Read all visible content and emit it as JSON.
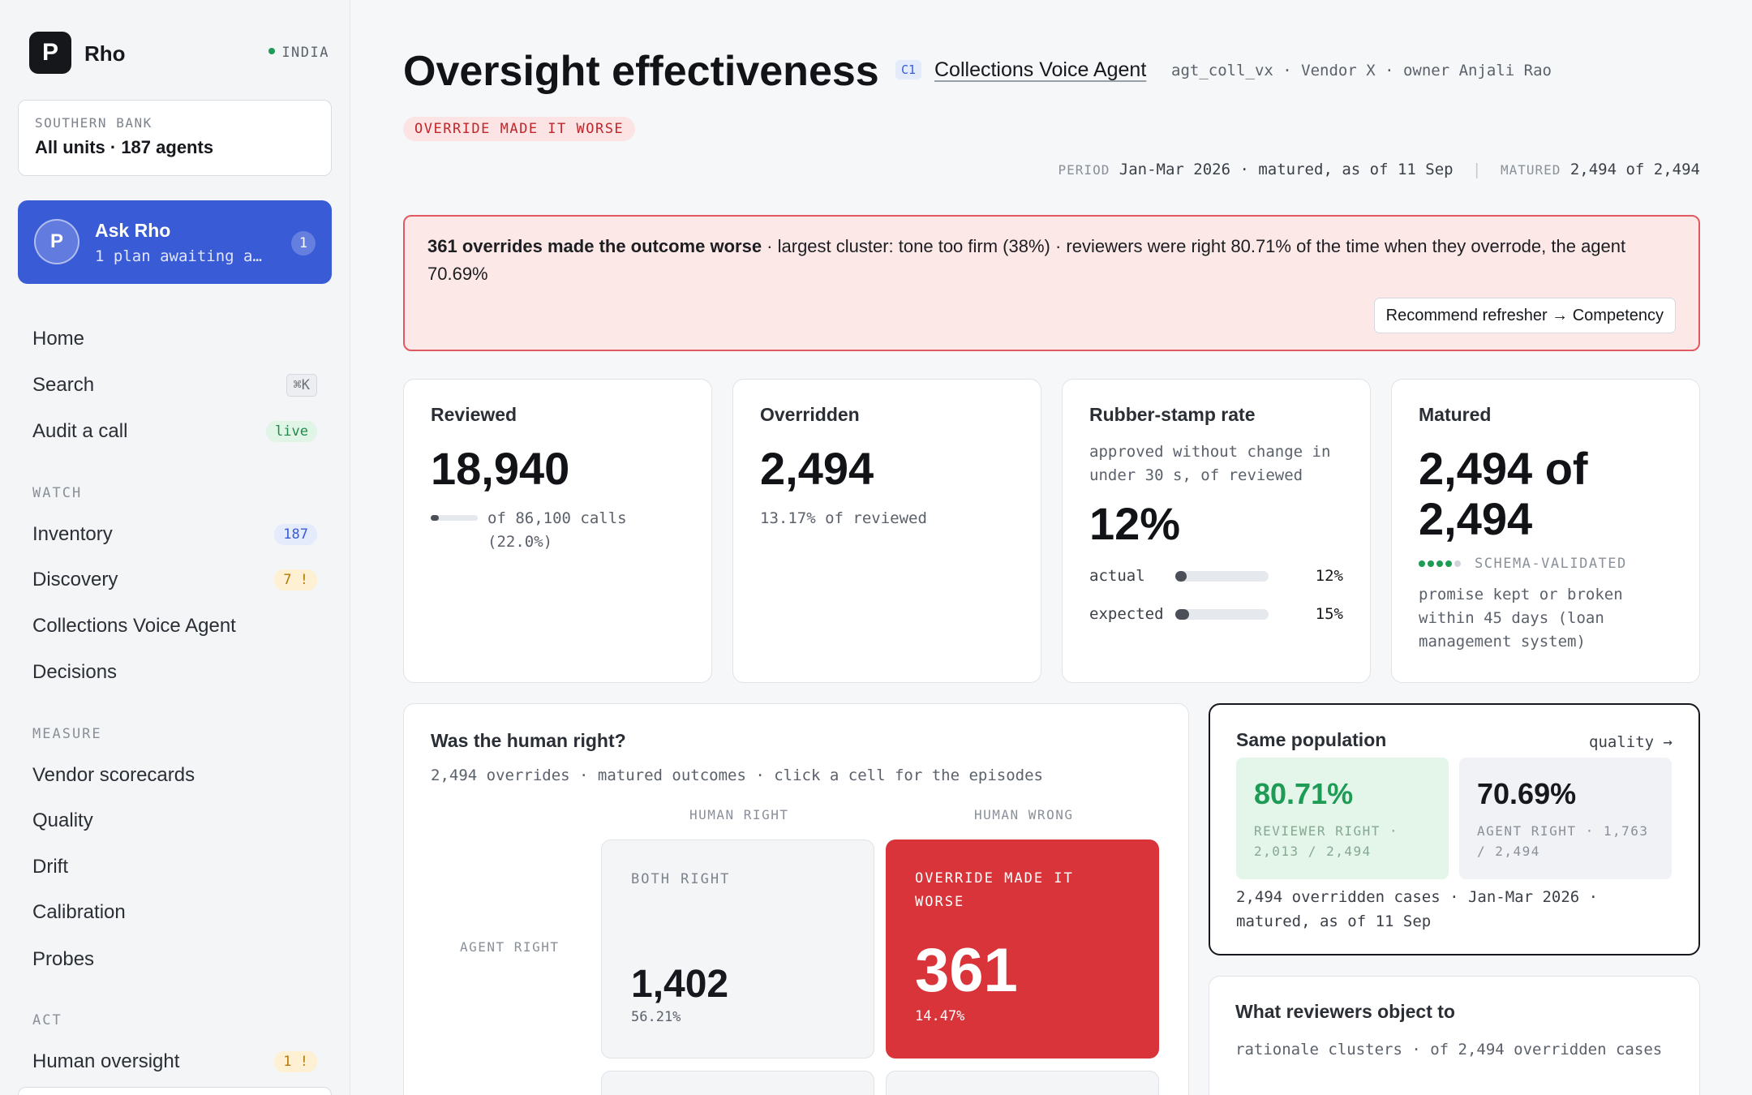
{
  "sidebar": {
    "brand": {
      "logo": "P",
      "name": "Rho",
      "region": "INDIA"
    },
    "unit": {
      "label": "SOUTHERN BANK",
      "value": "All units · 187 agents"
    },
    "ask": {
      "avatar": "P",
      "title": "Ask Rho",
      "subtitle": "1 plan awaiting a…",
      "badge": "1"
    },
    "top_items": [
      {
        "label": "Home",
        "badge": ""
      },
      {
        "label": "Search",
        "badge": "⌘K"
      },
      {
        "label": "Audit a call",
        "badge": "live"
      }
    ],
    "sections": [
      {
        "title": "WATCH",
        "items": [
          {
            "label": "Inventory",
            "badge": "187"
          },
          {
            "label": "Discovery",
            "badge": "7 !"
          },
          {
            "label": "Collections Voice Agent",
            "badge": ""
          },
          {
            "label": "Decisions",
            "badge": ""
          }
        ]
      },
      {
        "title": "MEASURE",
        "items": [
          {
            "label": "Vendor scorecards"
          },
          {
            "label": "Quality"
          },
          {
            "label": "Drift"
          },
          {
            "label": "Calibration"
          },
          {
            "label": "Probes"
          }
        ]
      },
      {
        "title": "ACT",
        "items": [
          {
            "label": "Human oversight",
            "badge": "1 !"
          }
        ]
      }
    ]
  },
  "header": {
    "title": "Oversight effectiveness",
    "tier": "C1",
    "agent_name": "Collections Voice Agent",
    "agent_meta": "agt_coll_vx · Vendor X · owner Anjali Rao",
    "status": "OVERRIDE MADE IT WORSE",
    "period_label": "PERIOD",
    "period_value": "Jan-Mar 2026 · matured, as of 11 Sep",
    "separator": "|",
    "matured_label": "MATURED",
    "matured_value": "2,494 of 2,494"
  },
  "alert": {
    "headline": "361 overrides made the outcome worse",
    "detail": " · largest cluster: tone too firm (38%) · reviewers were right 80.71% of the time when they overrode, the agent 70.69%",
    "button": "Recommend refresher → Competency"
  },
  "kpis": {
    "reviewed": {
      "label": "Reviewed",
      "value": "18,940",
      "note": "of 86,100 calls (22.0%)",
      "fraction": 0.22
    },
    "overridden": {
      "label": "Overridden",
      "value": "2,494",
      "note": "13.17% of reviewed"
    },
    "rubber_stamp": {
      "label": "Rubber-stamp rate",
      "note": "approved without change in under 30 s, of reviewed",
      "value": "12%",
      "rows": [
        {
          "name": "actual",
          "pct": "12%",
          "fraction": 0.12
        },
        {
          "name": "expected",
          "pct": "15%",
          "fraction": 0.15
        }
      ]
    },
    "matured": {
      "label": "Matured",
      "value": "2,494 of 2,494",
      "badge": "SCHEMA-VALIDATED",
      "dots_filled": 4,
      "dots_total": 5,
      "note": "promise kept or broken within 45 days (loan management system)"
    }
  },
  "matrix": {
    "title": "Was the human right?",
    "subtitle": "2,494 overrides · matured outcomes · click a cell for the episodes",
    "col_headers": [
      "HUMAN RIGHT",
      "HUMAN WRONG"
    ],
    "row_headers": [
      "AGENT RIGHT"
    ],
    "cells": [
      {
        "title": "BOTH RIGHT",
        "value": "1,402",
        "pct": "56.21%"
      },
      {
        "title": "OVERRIDE MADE IT WORSE",
        "value": "361",
        "pct": "14.47%"
      }
    ]
  },
  "population": {
    "title": "Same population",
    "link": "quality →",
    "reviewer": {
      "value": "80.71%",
      "label": "REVIEWER RIGHT · 2,013 / 2,494"
    },
    "agent": {
      "value": "70.69%",
      "label": "AGENT RIGHT · 1,763 / 2,494"
    },
    "footer": "2,494 overridden cases · Jan-Mar 2026 · matured, as of 11 Sep"
  },
  "objections": {
    "title": "What reviewers object to",
    "subtitle": "rationale clusters · of 2,494 overridden cases"
  },
  "colors": {
    "accent": "#3a5bd6",
    "danger": "#d8343a",
    "danger_bg": "#fde8e8",
    "success": "#1e9b55",
    "success_bg": "#e3f6e9"
  }
}
